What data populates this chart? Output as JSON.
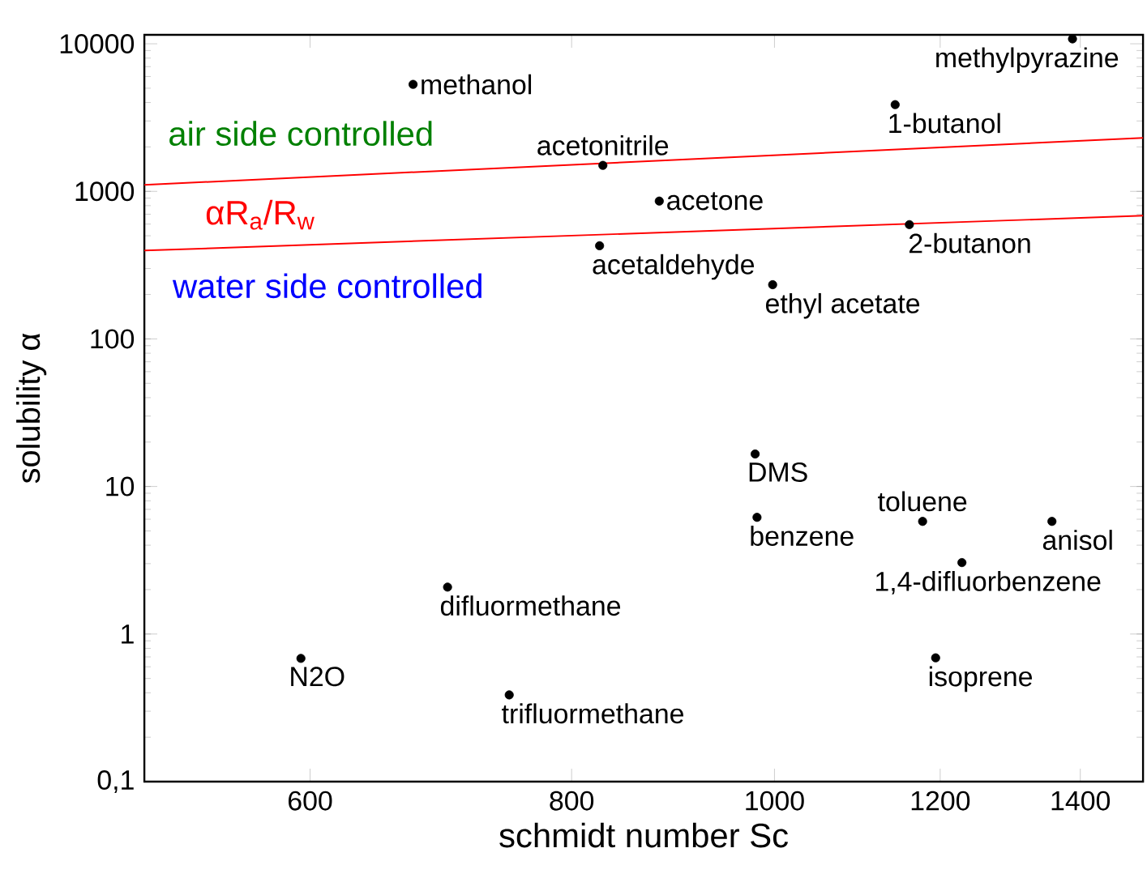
{
  "chart_data": {
    "type": "scatter",
    "xlabel": "schmidt number Sc",
    "ylabel": "solubility α",
    "log": "xy",
    "xlim": [
      500,
      1500
    ],
    "ylim": [
      0.1,
      11500
    ],
    "xticks": [
      600,
      800,
      1000,
      1200,
      1400
    ],
    "yticks": [
      {
        "value": 0.1,
        "label": "0,1"
      },
      1,
      10,
      100,
      1000,
      10000
    ],
    "marker": "circle",
    "series": [
      {
        "color": "#000000",
        "x": [
          672,
          828,
          881,
          825,
          998,
          1142,
          1388,
          1160,
          979,
          981,
          1177,
          1357,
          1229,
          698,
          594,
          1194,
          747
        ],
        "values": [
          5310,
          1500,
          859,
          428,
          233,
          3870,
          10790,
          595,
          16.6,
          6.18,
          5.8,
          5.8,
          3.05,
          2.08,
          0.684,
          0.69,
          0.387
        ]
      },
      {
        "type": "line",
        "color": "#ff0000",
        "marker": "none",
        "x": [
          500,
          1500
        ],
        "values": [
          1106,
          2305
        ]
      },
      {
        "type": "line",
        "color": "#ff0000",
        "marker": "none",
        "x": [
          500,
          1500
        ],
        "values": [
          397,
          684
        ]
      }
    ],
    "annotations": [
      "air side controlled",
      "αR$_{a}$/R$_{w}$",
      "water side controlled",
      {
        "text": "methanol",
        "x": 672,
        "y": 5310
      },
      {
        "text": "acetonitrile",
        "x": 828,
        "y": 1500
      },
      {
        "text": "acetone",
        "x": 881,
        "y": 859
      },
      {
        "text": "acetaldehyde",
        "x": 825,
        "y": 428
      },
      {
        "text": "ethyl acetate",
        "x": 998,
        "y": 233
      },
      {
        "text": "1-butanol",
        "x": 1142,
        "y": 3870
      },
      {
        "text": "methylpyrazine",
        "x": 1388,
        "y": 10790
      },
      {
        "text": "2-butanon",
        "x": 1160,
        "y": 595
      },
      {
        "text": "DMS",
        "x": 979,
        "y": 16.6
      },
      {
        "text": "benzene",
        "x": 981,
        "y": 6.18
      },
      {
        "text": "toluene",
        "x": 1177,
        "y": 5.8
      },
      {
        "text": "anisol",
        "x": 1357,
        "y": 5.8
      },
      {
        "text": "1,4-difluorbenzene",
        "x": 1229,
        "y": 3.05
      },
      {
        "text": "difluormethane",
        "x": 698,
        "y": 2.08
      },
      {
        "text": "N2O",
        "x": 594,
        "y": 0.684
      },
      {
        "text": "isoprene",
        "x": 1194,
        "y": 0.69
      },
      {
        "text": "trifluormethane",
        "x": 747,
        "y": 0.387
      }
    ]
  }
}
